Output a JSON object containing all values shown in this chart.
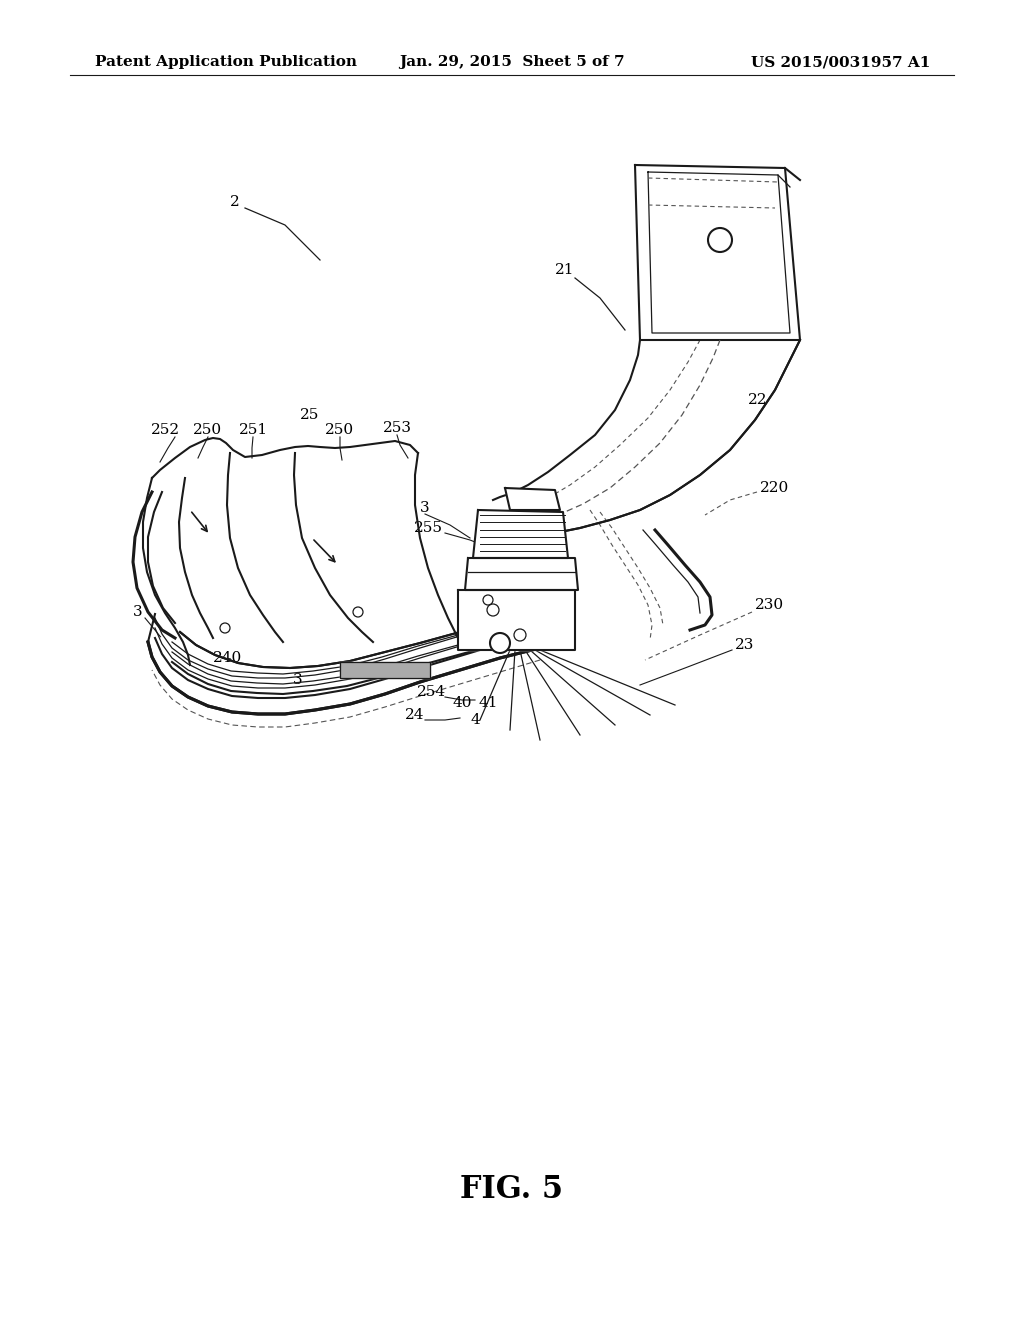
{
  "background_color": "#ffffff",
  "header_left": "Patent Application Publication",
  "header_center": "Jan. 29, 2015  Sheet 5 of 7",
  "header_right": "US 2015/0031957 A1",
  "figure_label": "FIG. 5",
  "line_color": "#1a1a1a",
  "dashed_color": "#555555",
  "text_color": "#000000",
  "fig_label_fontsize": 22,
  "header_fontsize": 11,
  "label_fontsize": 11
}
